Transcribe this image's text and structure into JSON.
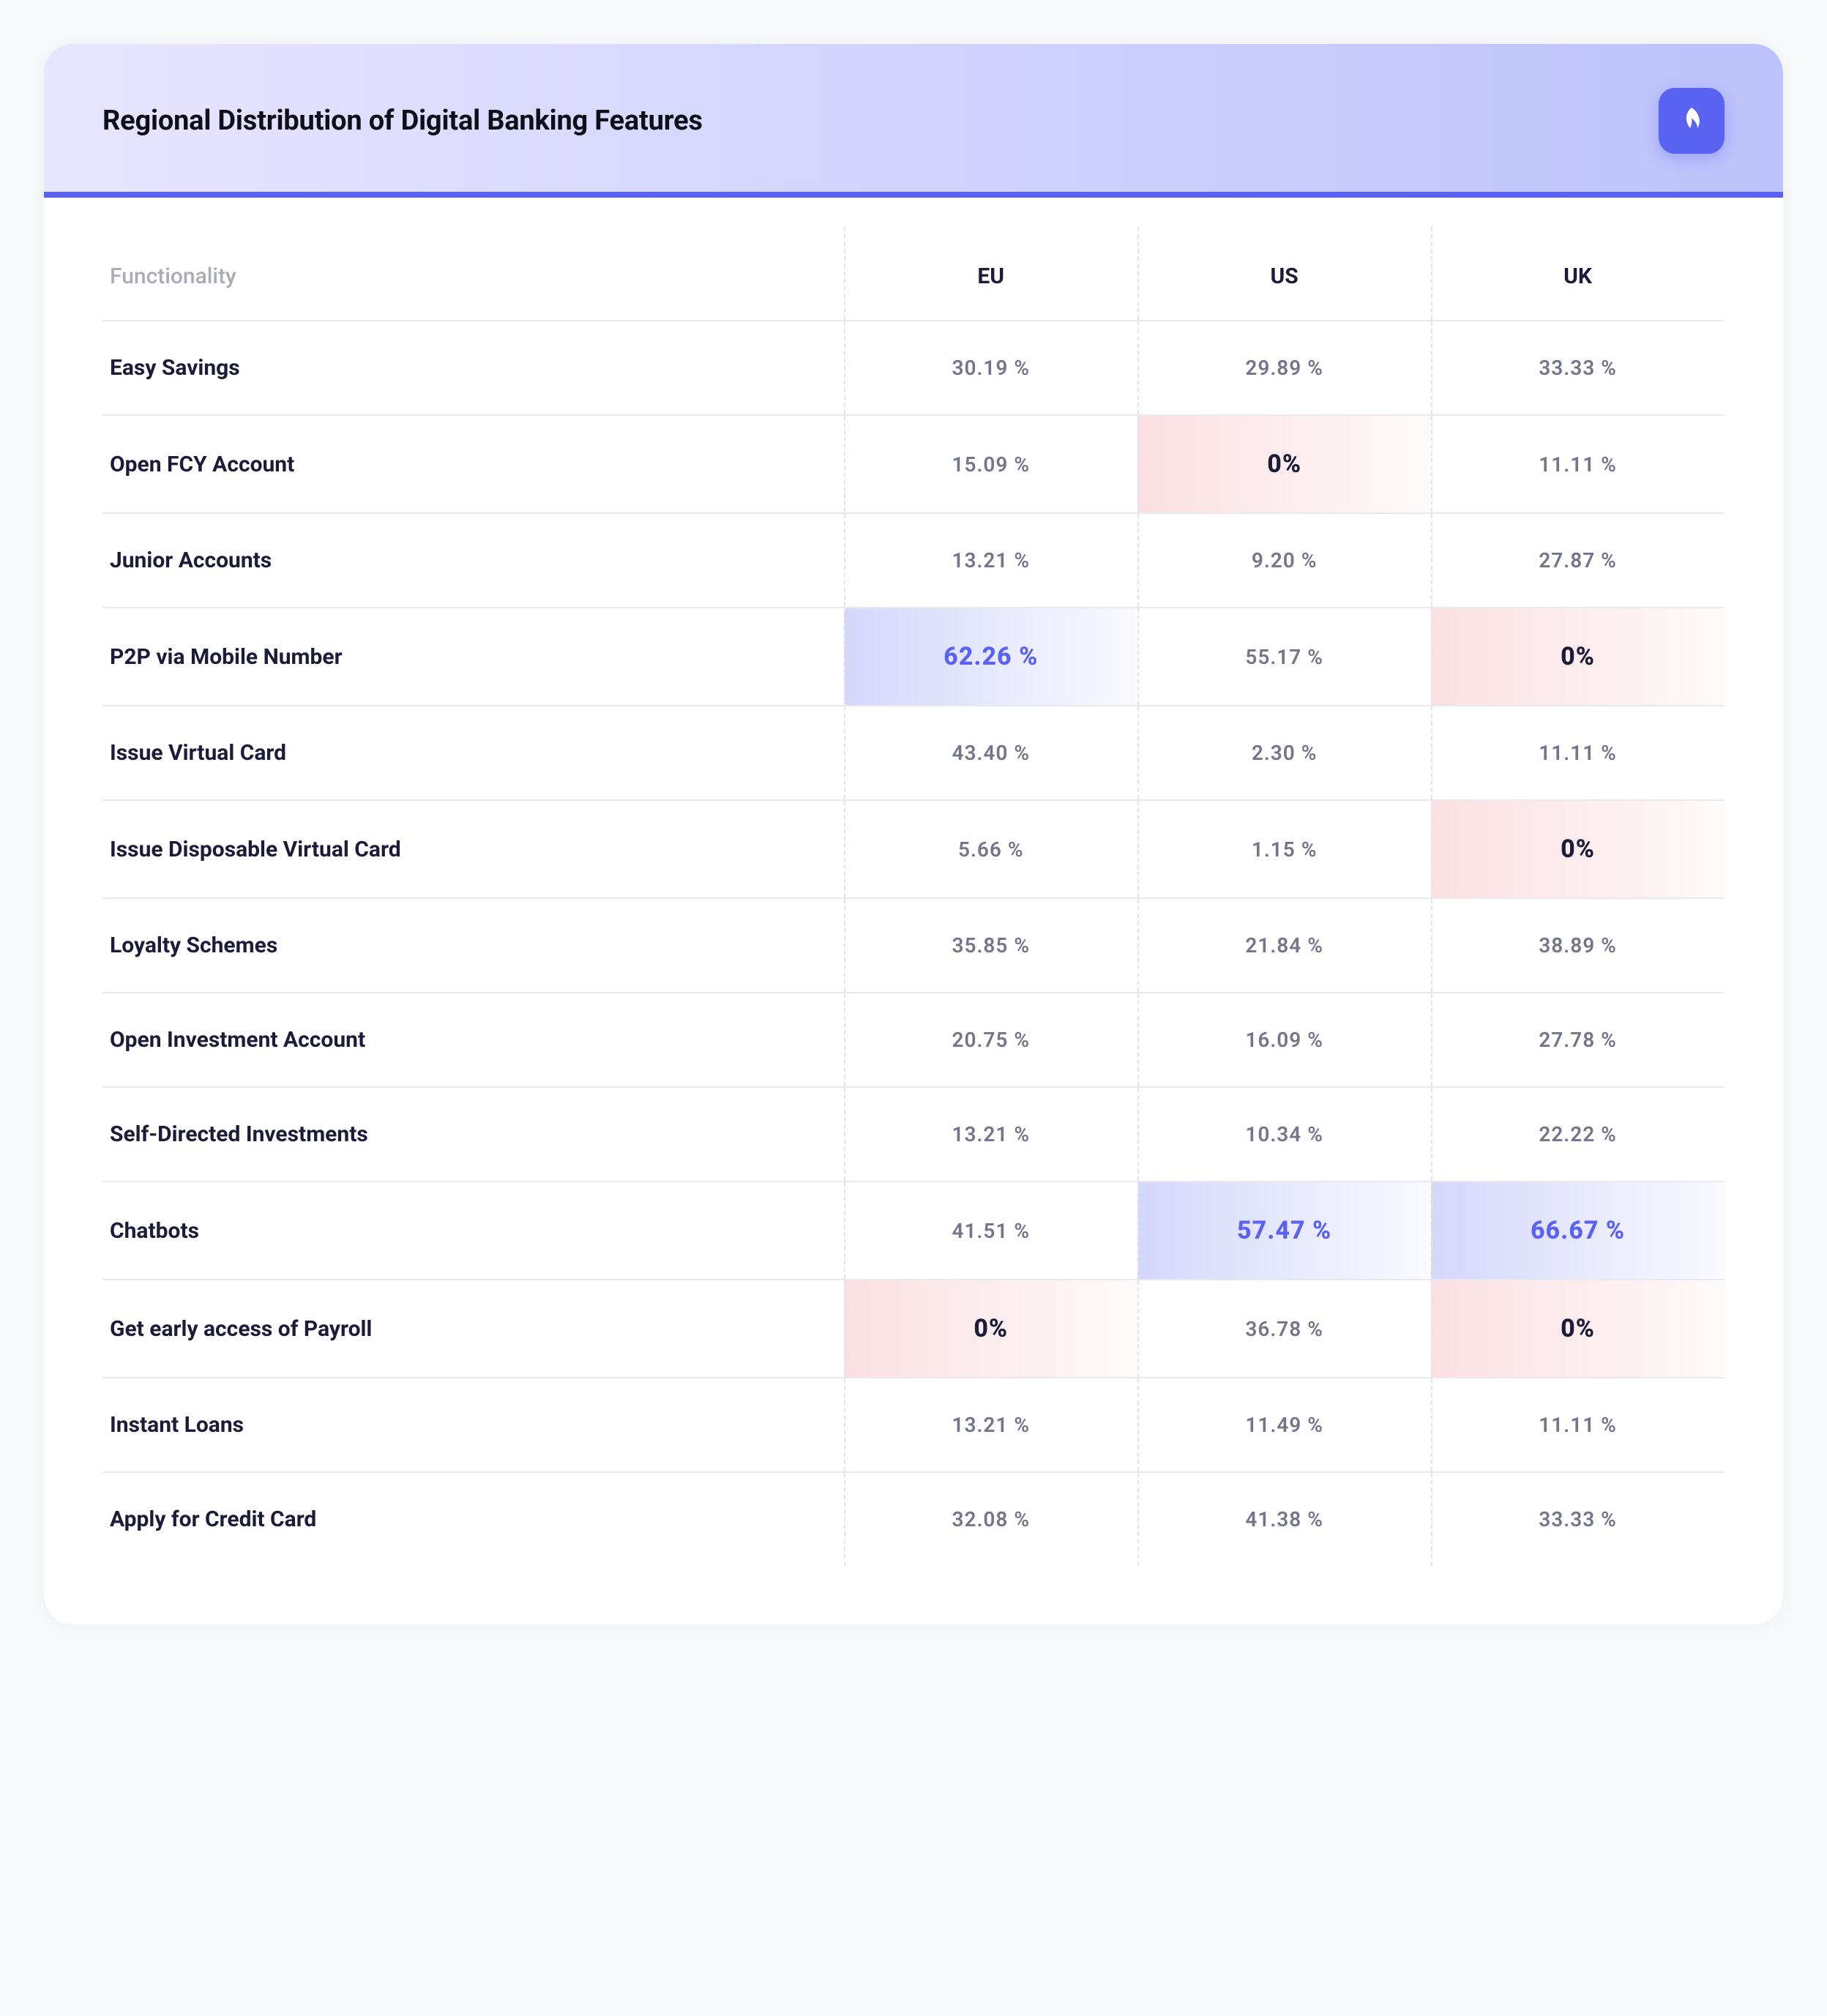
{
  "header": {
    "title": "Regional Distribution of Digital Banking Features",
    "accent_color": "#5a62f2",
    "header_gradient_from": "#e8e5ff",
    "header_gradient_to": "#bcc2fb",
    "logo_icon": "leaf-icon"
  },
  "table": {
    "type": "table",
    "background_color": "#ffffff",
    "border_color": "#e8e9ef",
    "col_separator_color": "#e2e3eb",
    "functionality_header": "Functionality",
    "region_columns": [
      "EU",
      "US",
      "UK"
    ],
    "header_fontsize": 30,
    "header_color": "#1b1b3a",
    "func_header_color": "#a9abb8",
    "body_font_color": "#73758a",
    "body_fontsize": 28,
    "func_cell_fontsize": 30,
    "func_cell_color": "#1b1b3a",
    "highlight_zero": {
      "gradient_from": "#fbdfe2",
      "gradient_to": "#fefafa",
      "text_color": "#1b1b3a",
      "fontsize": 34
    },
    "highlight_high": {
      "gradient_from": "#d4d7fb",
      "gradient_to": "#fafaff",
      "text_color": "#5a62f2",
      "fontsize": 34
    },
    "rows": [
      {
        "label": "Easy Savings",
        "values": [
          "30.19 %",
          "29.89 %",
          "33.33 %"
        ],
        "styles": [
          "",
          "",
          ""
        ]
      },
      {
        "label": "Open FCY Account",
        "values": [
          "15.09 %",
          "0%",
          "11.11 %"
        ],
        "styles": [
          "",
          "z",
          ""
        ]
      },
      {
        "label": "Junior Accounts",
        "values": [
          "13.21 %",
          "9.20 %",
          "27.87 %"
        ],
        "styles": [
          "",
          "",
          ""
        ]
      },
      {
        "label": "P2P via Mobile Number",
        "values": [
          "62.26 %",
          "55.17 %",
          "0%"
        ],
        "styles": [
          "h",
          "",
          "z"
        ]
      },
      {
        "label": "Issue Virtual Card",
        "values": [
          "43.40 %",
          "2.30 %",
          "11.11 %"
        ],
        "styles": [
          "",
          "",
          ""
        ]
      },
      {
        "label": "Issue Disposable Virtual Card",
        "values": [
          "5.66 %",
          "1.15 %",
          "0%"
        ],
        "styles": [
          "",
          "",
          "z"
        ]
      },
      {
        "label": "Loyalty Schemes",
        "values": [
          "35.85 %",
          "21.84 %",
          "38.89 %"
        ],
        "styles": [
          "",
          "",
          ""
        ]
      },
      {
        "label": "Open Investment Account",
        "values": [
          "20.75 %",
          "16.09 %",
          "27.78 %"
        ],
        "styles": [
          "",
          "",
          ""
        ]
      },
      {
        "label": "Self-Directed Investments",
        "values": [
          "13.21 %",
          "10.34 %",
          "22.22 %"
        ],
        "styles": [
          "",
          "",
          ""
        ]
      },
      {
        "label": "Chatbots",
        "values": [
          "41.51 %",
          "57.47 %",
          "66.67 %"
        ],
        "styles": [
          "",
          "h",
          "h"
        ]
      },
      {
        "label": "Get early access of Payroll",
        "values": [
          "0%",
          "36.78 %",
          "0%"
        ],
        "styles": [
          "z",
          "",
          "z"
        ]
      },
      {
        "label": "Instant Loans",
        "values": [
          "13.21 %",
          "11.49 %",
          "11.11 %"
        ],
        "styles": [
          "",
          "",
          ""
        ]
      },
      {
        "label": "Apply for Credit Card",
        "values": [
          "32.08 %",
          "41.38 %",
          "33.33 %"
        ],
        "styles": [
          "",
          "",
          ""
        ]
      }
    ]
  }
}
